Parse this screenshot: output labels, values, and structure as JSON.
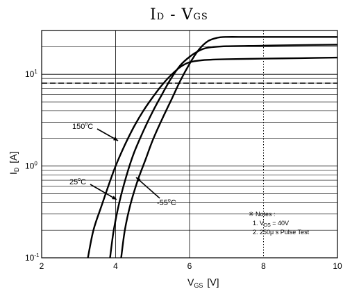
{
  "chart_data": {
    "type": "line",
    "title": "ID - VGS",
    "title_parts": {
      "main1": "I",
      "sub1": "D",
      "sep": " - ",
      "main2": "V",
      "sub2": "GS"
    },
    "xlabel_parts": {
      "main": "V",
      "sub": "GS",
      "unit": "[V]"
    },
    "ylabel_parts": {
      "main": "I",
      "sub": "D",
      "unit": "[A]"
    },
    "xlim": [
      2,
      10
    ],
    "ylim": [
      0.1,
      30
    ],
    "yscale": "log",
    "x_ticks": [
      "2",
      "4",
      "6",
      "8",
      "10"
    ],
    "y_ticks": [
      {
        "base": "10",
        "exp": "-1"
      },
      {
        "base": "10",
        "exp": "0"
      },
      {
        "base": "10",
        "exp": "1"
      }
    ],
    "grid": true,
    "series": [
      {
        "name": "150°C",
        "label": {
          "main": "150",
          "sup": "o",
          "unit": "C"
        },
        "x": [
          3.25,
          3.4,
          3.6,
          3.8,
          4.0,
          4.25,
          4.5,
          4.75,
          5.0,
          5.25,
          5.5,
          5.75,
          6.0,
          6.4,
          7.0,
          8.0,
          9.0,
          10.0
        ],
        "y": [
          0.1,
          0.2,
          0.35,
          0.6,
          1.0,
          1.7,
          2.7,
          4.0,
          5.6,
          7.6,
          9.8,
          12.0,
          13.5,
          14.3,
          14.6,
          14.8,
          15.0,
          15.2
        ]
      },
      {
        "name": "25°C",
        "label": {
          "main": "25",
          "sup": "o",
          "unit": "C"
        },
        "x": [
          3.85,
          3.95,
          4.1,
          4.3,
          4.5,
          4.75,
          5.0,
          5.25,
          5.5,
          5.75,
          6.0,
          6.25,
          6.5,
          7.0,
          8.0,
          9.0,
          10.0
        ],
        "y": [
          0.1,
          0.2,
          0.4,
          0.8,
          1.4,
          2.4,
          3.9,
          6.0,
          9.0,
          12.5,
          15.5,
          18.0,
          19.5,
          20.2,
          20.5,
          20.8,
          21.0
        ]
      },
      {
        "name": "-55°C",
        "label": {
          "main": "-55",
          "sup": "o",
          "unit": "C"
        },
        "x": [
          4.15,
          4.25,
          4.4,
          4.6,
          4.8,
          5.0,
          5.25,
          5.5,
          5.75,
          6.0,
          6.25,
          6.5,
          6.75,
          7.0,
          7.5,
          8.0,
          9.0,
          10.0
        ],
        "y": [
          0.1,
          0.2,
          0.38,
          0.7,
          1.15,
          1.9,
          3.2,
          5.2,
          8.5,
          13.0,
          18.5,
          23.0,
          25.0,
          25.5,
          25.5,
          25.5,
          25.5,
          25.5
        ]
      }
    ],
    "reference_lines": [
      {
        "axis": "x",
        "value": 8,
        "style": "dotted"
      },
      {
        "axis": "y",
        "value": 8,
        "style": "dashed"
      }
    ],
    "notes": {
      "heading": "※ Notes :",
      "line1_prefix": "1. V",
      "line1_sub": "DS",
      "line1_suffix": " = 40V",
      "line2": "2. 250μ s Pulse Test"
    },
    "colors": {
      "line": "#000000",
      "grid": "#000000",
      "background": "#ffffff"
    }
  }
}
